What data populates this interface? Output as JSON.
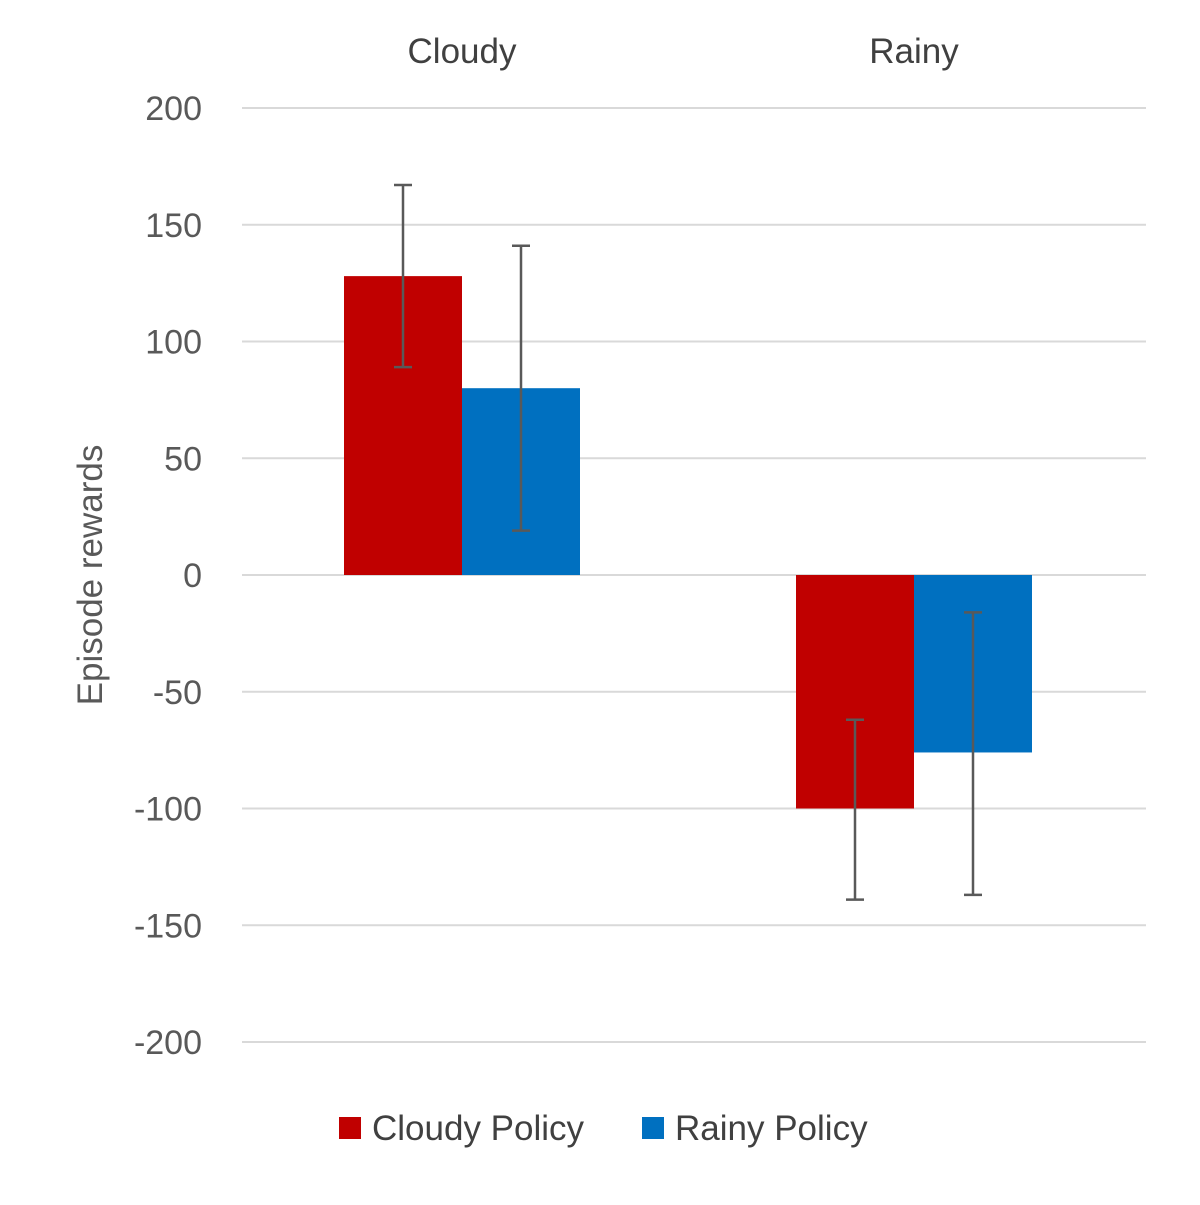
{
  "chart_data": {
    "type": "bar",
    "categories": [
      "Cloudy",
      "Rainy"
    ],
    "category_axis_position": "top",
    "series": [
      {
        "name": "Cloudy Policy",
        "color": "#c00000",
        "values": [
          128,
          -100
        ],
        "error_low": [
          89,
          -139
        ],
        "error_high": [
          167,
          -62
        ]
      },
      {
        "name": "Rainy Policy",
        "color": "#0070c0",
        "values": [
          80,
          -76
        ],
        "error_low": [
          19,
          -137
        ],
        "error_high": [
          141,
          -16
        ]
      }
    ],
    "xlabel": "",
    "ylabel": "Episode rewards",
    "ylim": [
      -200,
      200
    ],
    "yticks": [
      200,
      150,
      100,
      50,
      0,
      -50,
      -100,
      -150,
      -200
    ],
    "ytick_labels": [
      "200",
      "150",
      "100",
      "50",
      "0",
      "-50",
      "-100",
      "-150",
      "-200"
    ],
    "grid": true,
    "legend_position": "bottom"
  }
}
